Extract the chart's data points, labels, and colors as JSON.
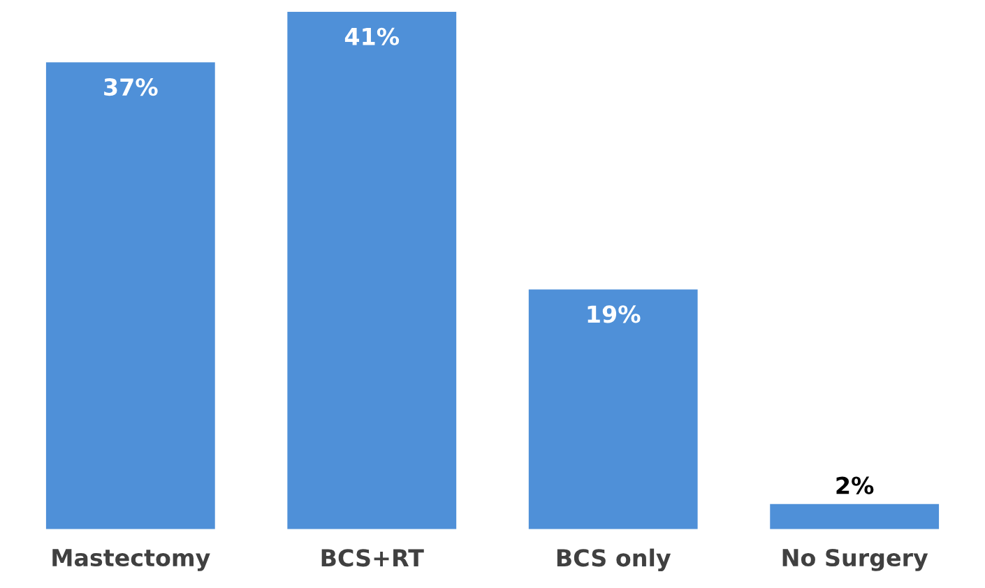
{
  "chart_data": {
    "type": "bar",
    "categories": [
      "Mastectomy",
      "BCS+RT",
      "BCS only",
      "No Surgery"
    ],
    "values": [
      37,
      41,
      19,
      2
    ],
    "value_labels": [
      "37%",
      "41%",
      "19%",
      "2%"
    ],
    "color": "#4f90d8",
    "grid": false,
    "legend": false
  }
}
